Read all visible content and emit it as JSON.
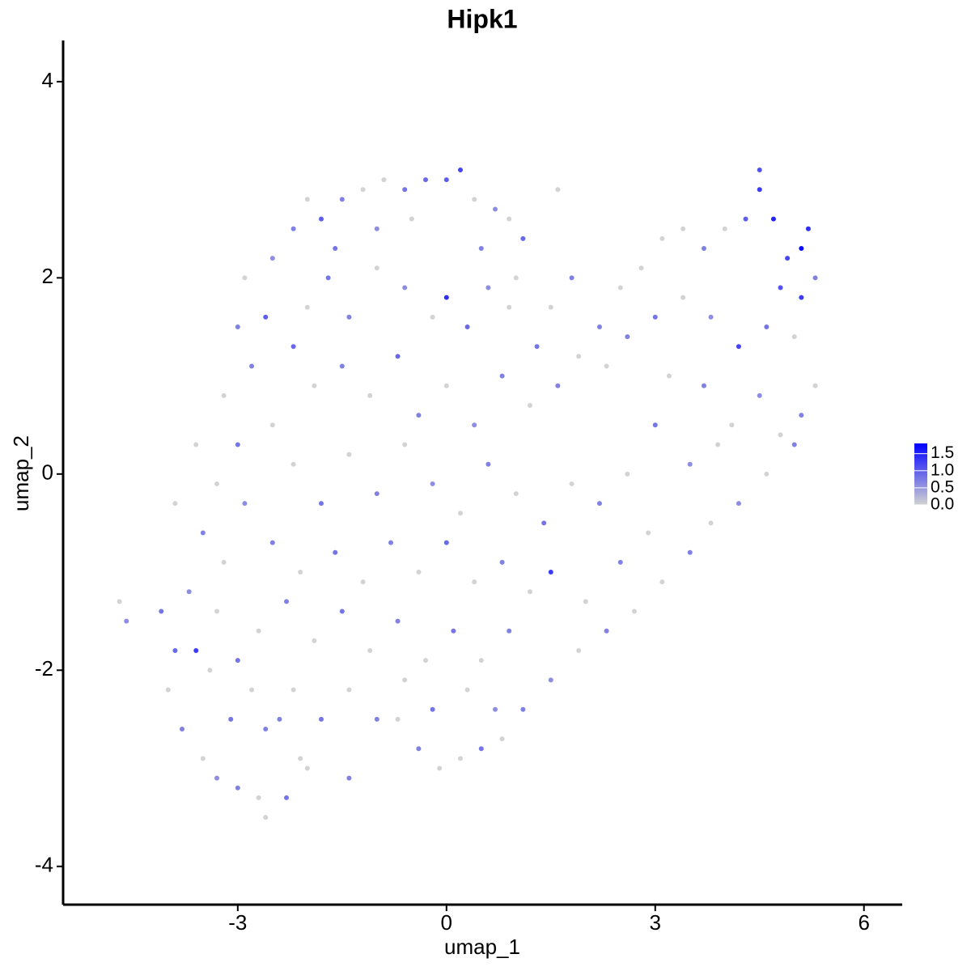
{
  "chart_data": {
    "type": "scatter",
    "title": "Hipk1",
    "x_label": "umap_1",
    "y_label": "umap_2",
    "xlim": [
      -5.51,
      6.55
    ],
    "ylim": [
      -4.39,
      4.42
    ],
    "xticks": [
      -3,
      0,
      3,
      6
    ],
    "yticks": [
      -4,
      -2,
      0,
      2,
      4
    ],
    "color_low": "#d3d3d3",
    "color_high": "#0000ff",
    "colorlim": [
      0,
      1.8
    ],
    "colorticks": [
      {
        "value": 0,
        "label": "0.0"
      },
      {
        "value": 0.5,
        "label": "0.5"
      },
      {
        "value": 1,
        "label": "1.0"
      },
      {
        "value": 1.5,
        "label": "1.5"
      }
    ],
    "x": [
      -4.7,
      -4.6,
      -4.1,
      -3.9,
      -4.0,
      -3.6,
      -3.8,
      -3.5,
      -3.3,
      -3.0,
      -2.7,
      -2.6,
      -2.3,
      -2.1,
      -2.4,
      -2.8,
      -3.1,
      -3.4,
      -3.7,
      -3.3,
      -3.5,
      -3.2,
      -2.9,
      -3.3,
      -3.0,
      -3.2,
      -2.8,
      -2.6,
      -2.9,
      -2.5,
      -2.2,
      -2.0,
      -1.8,
      -1.5,
      -1.2,
      -0.9,
      -0.6,
      -0.3,
      0.0,
      0.2,
      0.4,
      0.7,
      0.9,
      1.1,
      1.6,
      -1.7,
      -1.4,
      -1.0,
      -0.6,
      -0.2,
      0.0,
      0.3,
      0.6,
      0.9,
      1.3,
      -2.2,
      -1.9,
      -1.5,
      -1.1,
      -0.7,
      -0.4,
      0.0,
      0.4,
      0.8,
      1.2,
      1.6,
      1.9,
      2.2,
      2.5,
      2.8,
      3.1,
      3.4,
      3.7,
      4.0,
      4.3,
      4.5,
      4.5,
      4.7,
      4.9,
      5.1,
      5.2,
      5.3,
      5.1,
      4.8,
      5.0,
      4.6,
      4.2,
      3.8,
      3.4,
      3.0,
      2.6,
      2.3,
      5.3,
      5.1,
      4.8,
      4.5,
      4.1,
      3.7,
      3.2,
      3.0,
      5.0,
      4.6,
      4.2,
      3.8,
      3.5,
      3.1,
      2.7,
      2.3,
      1.9,
      1.5,
      1.1,
      0.8,
      0.5,
      0.2,
      -0.1,
      -0.4,
      -0.7,
      3.5,
      3.9,
      2.6,
      2.2,
      1.8,
      1.4,
      1.0,
      0.6,
      0.2,
      -0.2,
      -0.6,
      -1.0,
      -1.4,
      -1.8,
      -2.2,
      -2.5,
      -2.1,
      -1.6,
      -1.2,
      -0.8,
      -0.4,
      0.0,
      0.4,
      0.8,
      1.2,
      1.5,
      2.0,
      2.5,
      2.9,
      0.9,
      0.5,
      0.1,
      -0.3,
      -0.7,
      -1.1,
      -1.5,
      -1.9,
      -2.3,
      -2.7,
      -3.0,
      -2.6,
      -2.2,
      -1.8,
      -1.4,
      -1.0,
      -0.6,
      -0.2,
      0.3,
      0.7,
      -1.4,
      -2.0,
      -3.9,
      -3.6,
      -3.0,
      -2.5,
      -2.0,
      -1.6,
      -1.0,
      -0.5,
      0.5,
      1.0,
      1.5,
      1.8
    ],
    "y": [
      -1.3,
      -1.5,
      -1.4,
      -1.8,
      -2.2,
      -1.8,
      -2.6,
      -2.9,
      -3.1,
      -3.2,
      -3.3,
      -3.5,
      -3.3,
      -2.9,
      -2.5,
      -2.2,
      -2.5,
      -2.0,
      -1.2,
      -1.4,
      -0.6,
      -0.9,
      -0.3,
      -0.1,
      0.3,
      0.8,
      1.1,
      1.6,
      2.0,
      2.2,
      2.5,
      2.8,
      2.6,
      2.8,
      2.9,
      3.0,
      2.9,
      3.0,
      3.0,
      3.1,
      2.8,
      2.7,
      2.6,
      2.4,
      2.9,
      2.0,
      1.6,
      2.1,
      1.9,
      1.6,
      1.8,
      1.5,
      1.9,
      1.7,
      1.3,
      1.3,
      0.9,
      1.1,
      0.8,
      1.2,
      0.6,
      0.9,
      0.5,
      1.0,
      0.7,
      0.9,
      1.2,
      1.5,
      1.9,
      2.1,
      2.4,
      2.5,
      2.3,
      2.5,
      2.6,
      2.9,
      3.1,
      2.6,
      2.2,
      2.3,
      2.5,
      2.0,
      1.8,
      1.9,
      1.4,
      1.5,
      1.3,
      1.6,
      1.8,
      1.6,
      1.4,
      1.1,
      0.9,
      0.6,
      0.4,
      0.8,
      0.5,
      0.9,
      1.0,
      0.5,
      0.3,
      0.0,
      -0.3,
      -0.5,
      -0.8,
      -1.1,
      -1.4,
      -1.6,
      -1.8,
      -2.1,
      -2.4,
      -2.7,
      -2.8,
      -2.9,
      -3.0,
      -2.8,
      -2.5,
      0.1,
      0.3,
      0.0,
      -0.3,
      -0.1,
      -0.5,
      -0.2,
      0.1,
      -0.4,
      -0.1,
      0.3,
      -0.2,
      0.2,
      -0.3,
      0.1,
      -0.7,
      -1.0,
      -0.8,
      -1.1,
      -0.7,
      -1.0,
      -0.7,
      -1.1,
      -0.9,
      -1.2,
      -1.0,
      -1.3,
      -0.9,
      -0.6,
      -1.6,
      -1.9,
      -1.6,
      -1.9,
      -1.5,
      -1.8,
      -1.4,
      -1.7,
      -1.3,
      -1.6,
      -1.9,
      -2.6,
      -2.2,
      -2.5,
      -2.2,
      -2.5,
      -2.1,
      -2.4,
      -2.2,
      -2.4,
      -3.1,
      -3.0,
      -0.3,
      0.3,
      1.5,
      0.5,
      1.7,
      2.3,
      2.5,
      2.6,
      2.3,
      2.0,
      1.7,
      2.0
    ],
    "values": [
      0,
      0.6,
      0.8,
      0.9,
      0,
      1.3,
      0.7,
      0,
      0.6,
      0.7,
      0,
      0,
      0.8,
      0,
      0.7,
      0,
      0.8,
      0,
      0.6,
      0,
      0.7,
      0,
      0.6,
      0,
      0.8,
      0,
      0.7,
      1.0,
      0,
      0.6,
      0.7,
      0,
      1.0,
      0.7,
      0,
      0,
      0.8,
      0.9,
      1.0,
      1.2,
      0,
      0.6,
      0,
      0.9,
      0,
      0.8,
      0.7,
      0,
      0.6,
      0,
      1.4,
      0.9,
      0.6,
      0,
      0.8,
      0.9,
      0,
      0.7,
      0,
      0.9,
      0.7,
      0,
      0.6,
      0.7,
      0,
      0.7,
      0,
      0.7,
      0,
      0,
      0,
      0,
      0.7,
      0,
      1.0,
      1.3,
      1.1,
      1.5,
      1.2,
      1.7,
      1.4,
      0.7,
      1.3,
      1.1,
      0,
      0.8,
      1.2,
      0.6,
      0,
      0.8,
      0.7,
      0,
      0,
      0.7,
      0,
      0.6,
      0,
      0.7,
      0,
      0.8,
      0.7,
      0,
      0.6,
      0,
      0.7,
      0,
      0,
      0.7,
      0,
      0.6,
      0.7,
      0,
      0.8,
      0,
      0,
      0.7,
      0,
      0.6,
      0,
      0,
      0.7,
      0,
      0.8,
      0,
      0.7,
      0,
      0.6,
      0,
      0.7,
      0,
      0.8,
      0,
      0.7,
      0,
      0.8,
      0,
      0.7,
      0,
      0.9,
      0,
      0.7,
      0,
      1.3,
      0,
      0.7,
      0,
      0.7,
      0,
      0.8,
      0,
      0.7,
      0,
      0.8,
      0,
      0.7,
      0,
      0.8,
      0.7,
      0,
      0.8,
      0,
      0.7,
      0,
      0.8,
      0,
      0.6,
      0.7,
      0,
      0,
      0,
      0.7,
      0,
      0,
      0.8,
      0.6,
      0,
      0.7,
      0,
      0,
      0.7
    ]
  }
}
